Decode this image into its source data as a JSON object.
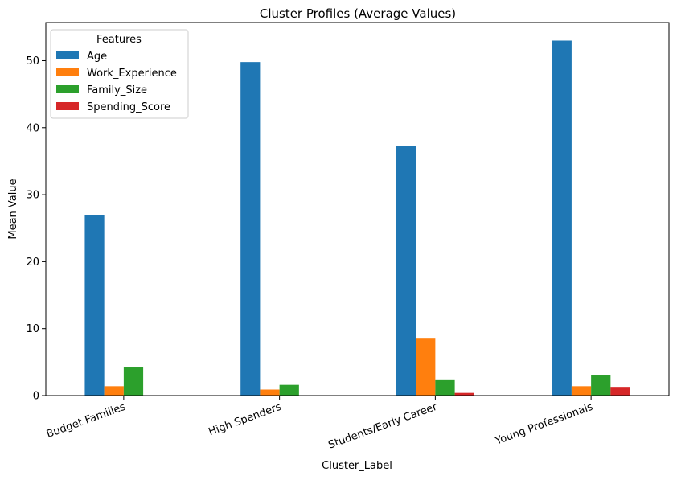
{
  "chart_data": {
    "type": "bar",
    "title": "Cluster Profiles (Average Values)",
    "xlabel": "Cluster_Label",
    "ylabel": "Mean Value",
    "ylim": [
      0,
      55.7
    ],
    "yticks": [
      0,
      10,
      20,
      30,
      40,
      50
    ],
    "grid": false,
    "legend_title": "Features",
    "legend_position": "upper-left",
    "categories": [
      "Budget Families",
      "High Spenders",
      "Students/Early Career",
      "Young Professionals"
    ],
    "series": [
      {
        "name": "Age",
        "color": "#1f77b4",
        "values": [
          27.0,
          49.8,
          37.3,
          53.0
        ]
      },
      {
        "name": "Work_Experience",
        "color": "#ff7f0e",
        "values": [
          1.4,
          0.9,
          8.5,
          1.4
        ]
      },
      {
        "name": "Family_Size",
        "color": "#2ca02c",
        "values": [
          4.2,
          1.6,
          2.3,
          3.0
        ]
      },
      {
        "name": "Spending_Score",
        "color": "#d62728",
        "values": [
          0.0,
          0.0,
          0.4,
          1.3
        ]
      }
    ]
  }
}
